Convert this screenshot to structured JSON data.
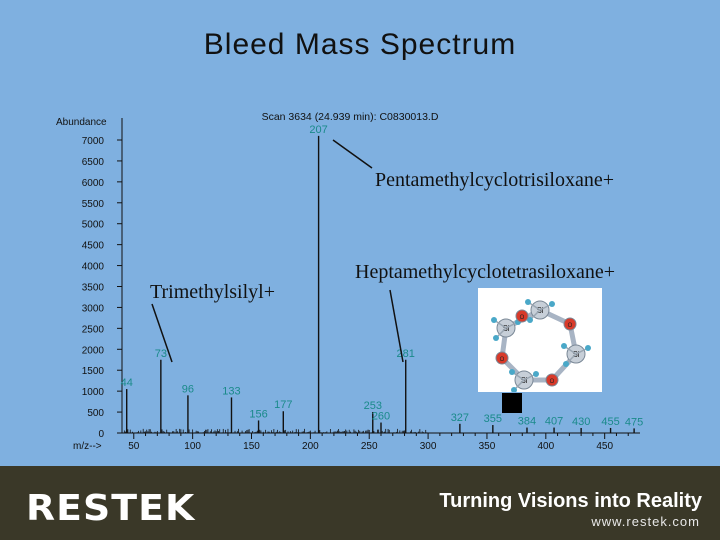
{
  "slide": {
    "title": "Bleed Mass Spectrum"
  },
  "chart_data": {
    "type": "bar",
    "title": "Scan 3634 (24.939 min): C0830013.D",
    "ylabel": "Abundance",
    "xlabel": "m/z-->",
    "ylim": [
      0,
      7000
    ],
    "xlim": [
      40,
      480
    ],
    "yticks": [
      0,
      500,
      1000,
      1500,
      2000,
      2500,
      3000,
      3500,
      4000,
      4500,
      5000,
      5500,
      6000,
      6500,
      7000
    ],
    "xticks": [
      50,
      100,
      150,
      200,
      250,
      300,
      350,
      400,
      450
    ],
    "peaks": [
      {
        "mz": 44,
        "abundance": 1050,
        "label": "44"
      },
      {
        "mz": 73,
        "abundance": 1750,
        "label": "73"
      },
      {
        "mz": 96,
        "abundance": 900,
        "label": "96"
      },
      {
        "mz": 133,
        "abundance": 850,
        "label": "133"
      },
      {
        "mz": 156,
        "abundance": 300,
        "label": "156"
      },
      {
        "mz": 177,
        "abundance": 520,
        "label": "177"
      },
      {
        "mz": 207,
        "abundance": 7100,
        "label": "207"
      },
      {
        "mz": 253,
        "abundance": 500,
        "label": "253"
      },
      {
        "mz": 260,
        "abundance": 250,
        "label": "260"
      },
      {
        "mz": 281,
        "abundance": 1750,
        "label": "281"
      },
      {
        "mz": 327,
        "abundance": 220,
        "label": "327"
      },
      {
        "mz": 355,
        "abundance": 190,
        "label": "355"
      },
      {
        "mz": 384,
        "abundance": 130,
        "label": "384"
      },
      {
        "mz": 407,
        "abundance": 130,
        "label": "407"
      },
      {
        "mz": 430,
        "abundance": 120,
        "label": "430"
      },
      {
        "mz": 455,
        "abundance": 120,
        "label": "455"
      },
      {
        "mz": 475,
        "abundance": 110,
        "label": "475"
      }
    ],
    "annotations": [
      {
        "text": "Pentamethylcyclotrisiloxane+",
        "target_mz": 207
      },
      {
        "text": "Trimethylsilyl+",
        "target_mz": 73
      },
      {
        "text": "Heptamethylcyclotetrasiloxane+",
        "target_mz": 281
      }
    ]
  },
  "molecule": {
    "atom_labels": [
      "Si",
      "Si",
      "Si",
      "Si",
      "O",
      "O",
      "O",
      "O"
    ]
  },
  "footer": {
    "logo": "RESTEK",
    "tagline": "Turning Visions into Reality",
    "url": "www.restek.com"
  }
}
